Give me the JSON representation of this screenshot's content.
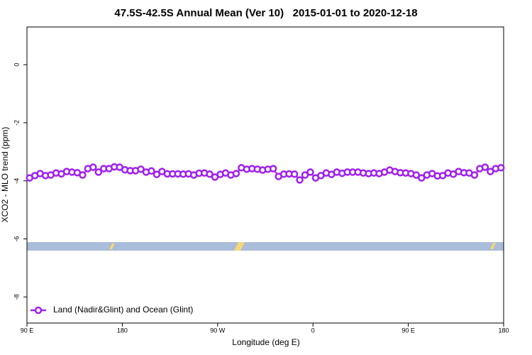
{
  "chart_data": {
    "type": "line",
    "title": "47.5S-42.5S Annual Mean (Ver 10)   2015-01-01 to 2020-12-18",
    "xlabel": "Longitude (deg E)",
    "ylabel": "XCO2 - MLO trend (ppm)",
    "xlim": [
      90,
      540
    ],
    "xticks": [
      {
        "value": 90,
        "label": "90 E"
      },
      180,
      {
        "value": 270,
        "label": "90 W"
      },
      {
        "value": 360,
        "label": "0"
      },
      {
        "value": 450,
        "label": "90 E"
      },
      {
        "value": 540,
        "label": "180"
      }
    ],
    "ylim": [
      -8.9,
      1.3
    ],
    "yticks": [
      0,
      -2,
      -4,
      -6,
      -8
    ],
    "legend": "bottom-left",
    "x": [
      92.5,
      97.5,
      102.5,
      107.5,
      112.5,
      117.5,
      122.5,
      127.5,
      132.5,
      137.5,
      142.5,
      147.5,
      152.5,
      157.5,
      162.5,
      167.5,
      172.5,
      177.5,
      182.5,
      187.5,
      192.5,
      197.5,
      202.5,
      207.5,
      212.5,
      217.5,
      222.5,
      227.5,
      232.5,
      237.5,
      242.5,
      247.5,
      252.5,
      257.5,
      262.5,
      267.5,
      272.5,
      277.5,
      282.5,
      287.5,
      292.5,
      297.5,
      302.5,
      307.5,
      312.5,
      317.5,
      322.5,
      327.5,
      332.5,
      337.5,
      342.5,
      347.5,
      352.5,
      357.5,
      362.5,
      367.5,
      372.5,
      377.5,
      382.5,
      387.5,
      392.5,
      397.5,
      402.5,
      407.5,
      412.5,
      417.5,
      422.5,
      427.5,
      432.5,
      437.5,
      442.5,
      447.5,
      452.5,
      457.5,
      462.5,
      467.5,
      472.5,
      477.5,
      482.5,
      487.5,
      492.5,
      497.5,
      502.5,
      507.5,
      512.5,
      517.5,
      522.5,
      527.5,
      532.5,
      537.5
    ],
    "series": [
      {
        "name": "Land (Nadir&Glint) and Ocean (Glint)",
        "color": "#a020f0",
        "values": [
          -3.9,
          -3.82,
          -3.75,
          -3.82,
          -3.8,
          -3.73,
          -3.76,
          -3.68,
          -3.7,
          -3.72,
          -3.8,
          -3.58,
          -3.53,
          -3.7,
          -3.58,
          -3.58,
          -3.52,
          -3.53,
          -3.62,
          -3.65,
          -3.65,
          -3.6,
          -3.7,
          -3.66,
          -3.78,
          -3.68,
          -3.76,
          -3.76,
          -3.76,
          -3.77,
          -3.76,
          -3.8,
          -3.74,
          -3.73,
          -3.77,
          -3.87,
          -3.78,
          -3.73,
          -3.8,
          -3.75,
          -3.55,
          -3.6,
          -3.58,
          -3.6,
          -3.63,
          -3.6,
          -3.58,
          -3.85,
          -3.77,
          -3.76,
          -3.77,
          -3.97,
          -3.8,
          -3.7,
          -3.9,
          -3.82,
          -3.73,
          -3.78,
          -3.7,
          -3.74,
          -3.7,
          -3.7,
          -3.7,
          -3.73,
          -3.75,
          -3.73,
          -3.75,
          -3.7,
          -3.63,
          -3.68,
          -3.72,
          -3.73,
          -3.75,
          -3.8,
          -3.9,
          -3.8,
          -3.75,
          -3.83,
          -3.82,
          -3.73,
          -3.77,
          -3.68,
          -3.72,
          -3.73,
          -3.8,
          -3.58,
          -3.53,
          -3.68,
          -3.58,
          -3.55
        ]
      }
    ]
  }
}
